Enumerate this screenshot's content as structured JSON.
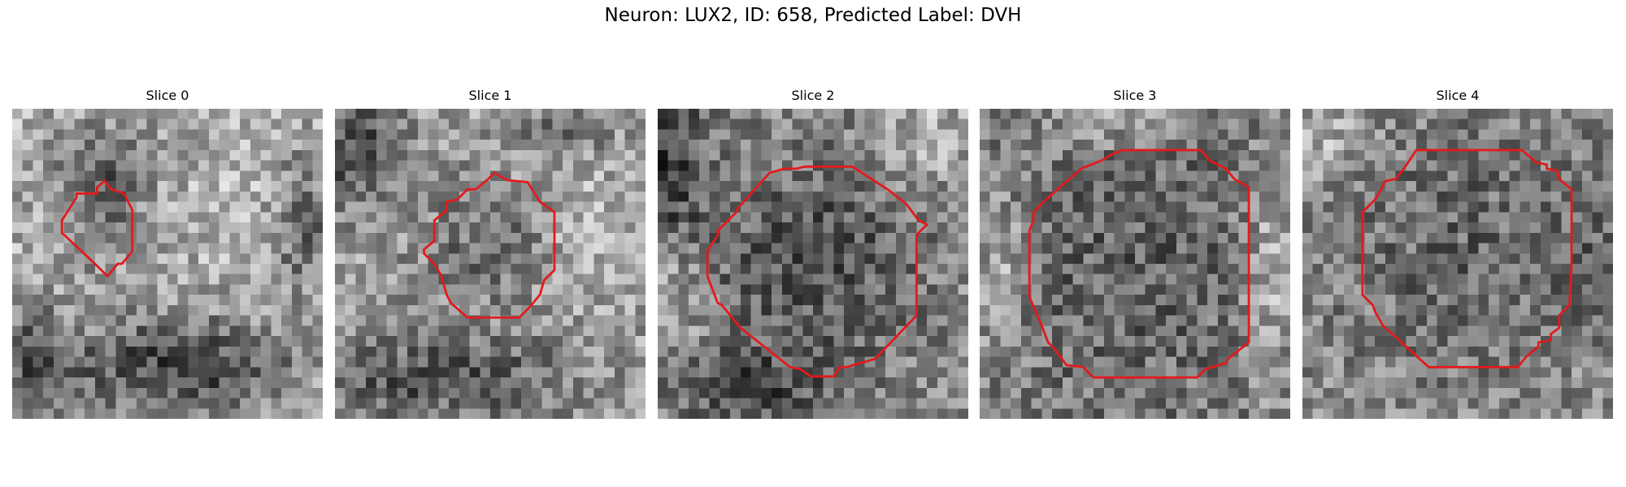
{
  "figure": {
    "title": "Neuron: LUX2, ID: 658, Predicted Label: DVH",
    "grid_size": 30,
    "contour_color": "#e31a1c",
    "colormap": "gray"
  },
  "panels": [
    {
      "title": "Slice 0"
    },
    {
      "title": "Slice 1"
    },
    {
      "title": "Slice 2"
    },
    {
      "title": "Slice 3"
    },
    {
      "title": "Slice 4"
    }
  ]
}
